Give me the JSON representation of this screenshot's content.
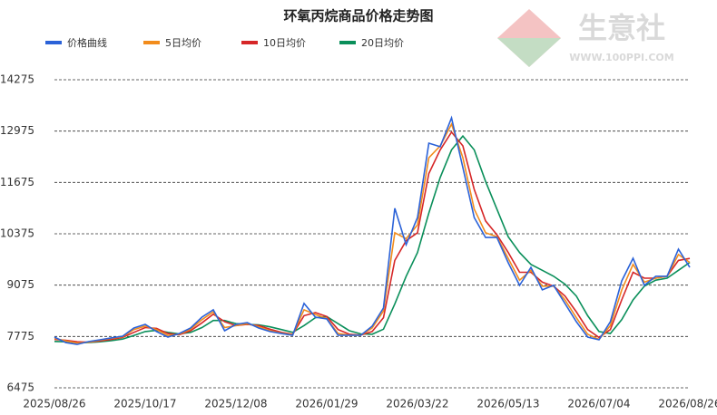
{
  "chart_data": {
    "type": "line",
    "title": "环氧丙烷商品价格走势图",
    "watermark": {
      "name": "生意社",
      "url": "WWW.100PPI.COM"
    },
    "categories": [
      "2025/08/26",
      null,
      null,
      null,
      null,
      null,
      null,
      null,
      "2025/10/17",
      null,
      null,
      null,
      null,
      null,
      null,
      null,
      "2025/12/08",
      null,
      null,
      null,
      null,
      null,
      null,
      null,
      "2026/01/29",
      null,
      null,
      null,
      null,
      null,
      null,
      null,
      "2026/03/22",
      null,
      null,
      null,
      null,
      null,
      null,
      null,
      "2026/05/13",
      null,
      null,
      null,
      null,
      null,
      null,
      null,
      "2026/07/04",
      null,
      null,
      null,
      null,
      null,
      null,
      null,
      "2026/08/26"
    ],
    "series": [
      {
        "name": "价格曲线",
        "color": "#2b62d8",
        "width": 1.6,
        "values": [
          7760,
          7620,
          7575,
          7645,
          7690,
          7740,
          7780,
          7990,
          8080,
          7900,
          7760,
          7850,
          7990,
          8265,
          8450,
          7920,
          8080,
          8125,
          7990,
          7900,
          7850,
          7805,
          8610,
          8265,
          8220,
          7805,
          7805,
          7805,
          8035,
          8495,
          11020,
          10100,
          10785,
          12670,
          12580,
          13310,
          12050,
          10785,
          10280,
          10280,
          9640,
          9070,
          9525,
          8955,
          9070,
          8610,
          8150,
          7760,
          7690,
          8150,
          9180,
          9755,
          9070,
          9300,
          9300,
          9985,
          9525
        ]
      },
      {
        "name": "5日均价",
        "color": "#f28c1c",
        "width": 1.6,
        "values": [
          7730,
          7660,
          7610,
          7630,
          7680,
          7730,
          7770,
          7950,
          8040,
          7950,
          7800,
          7830,
          7960,
          8200,
          8400,
          8000,
          8050,
          8100,
          8020,
          7920,
          7860,
          7820,
          8450,
          8330,
          8230,
          7850,
          7810,
          7805,
          7990,
          8420,
          10400,
          10250,
          10600,
          12300,
          12600,
          13150,
          12300,
          11000,
          10400,
          10300,
          9750,
          9200,
          9450,
          9050,
          9050,
          8700,
          8250,
          7830,
          7700,
          8050,
          8950,
          9600,
          9150,
          9250,
          9300,
          9850,
          9650
        ]
      },
      {
        "name": "10日均价",
        "color": "#d62728",
        "width": 1.6,
        "values": [
          7700,
          7680,
          7640,
          7630,
          7660,
          7700,
          7750,
          7880,
          8000,
          7980,
          7850,
          7820,
          7920,
          8120,
          8340,
          8150,
          8050,
          8080,
          8050,
          7960,
          7880,
          7830,
          8300,
          8380,
          8280,
          7950,
          7830,
          7810,
          7900,
          8250,
          9700,
          10200,
          10400,
          11900,
          12500,
          12950,
          12600,
          11500,
          10700,
          10350,
          9900,
          9400,
          9400,
          9150,
          9050,
          8800,
          8400,
          7950,
          7750,
          7950,
          8700,
          9400,
          9250,
          9250,
          9300,
          9700,
          9750
        ]
      },
      {
        "name": "20日均价",
        "color": "#0a8f5a",
        "width": 1.6,
        "values": [
          7650,
          7640,
          7620,
          7620,
          7640,
          7670,
          7710,
          7800,
          7900,
          7930,
          7880,
          7840,
          7880,
          8000,
          8180,
          8180,
          8100,
          8080,
          8070,
          8020,
          7950,
          7880,
          8050,
          8250,
          8280,
          8100,
          7920,
          7840,
          7830,
          7960,
          8600,
          9300,
          9900,
          10900,
          11800,
          12500,
          12850,
          12500,
          11700,
          11000,
          10300,
          9900,
          9600,
          9450,
          9300,
          9100,
          8800,
          8300,
          7900,
          7850,
          8200,
          8700,
          9050,
          9200,
          9250,
          9450,
          9650
        ]
      }
    ],
    "ylim": [
      6475,
      14275
    ],
    "yticks": [
      6475,
      7775,
      9075,
      10375,
      11675,
      12975,
      14275
    ],
    "grid": true
  }
}
